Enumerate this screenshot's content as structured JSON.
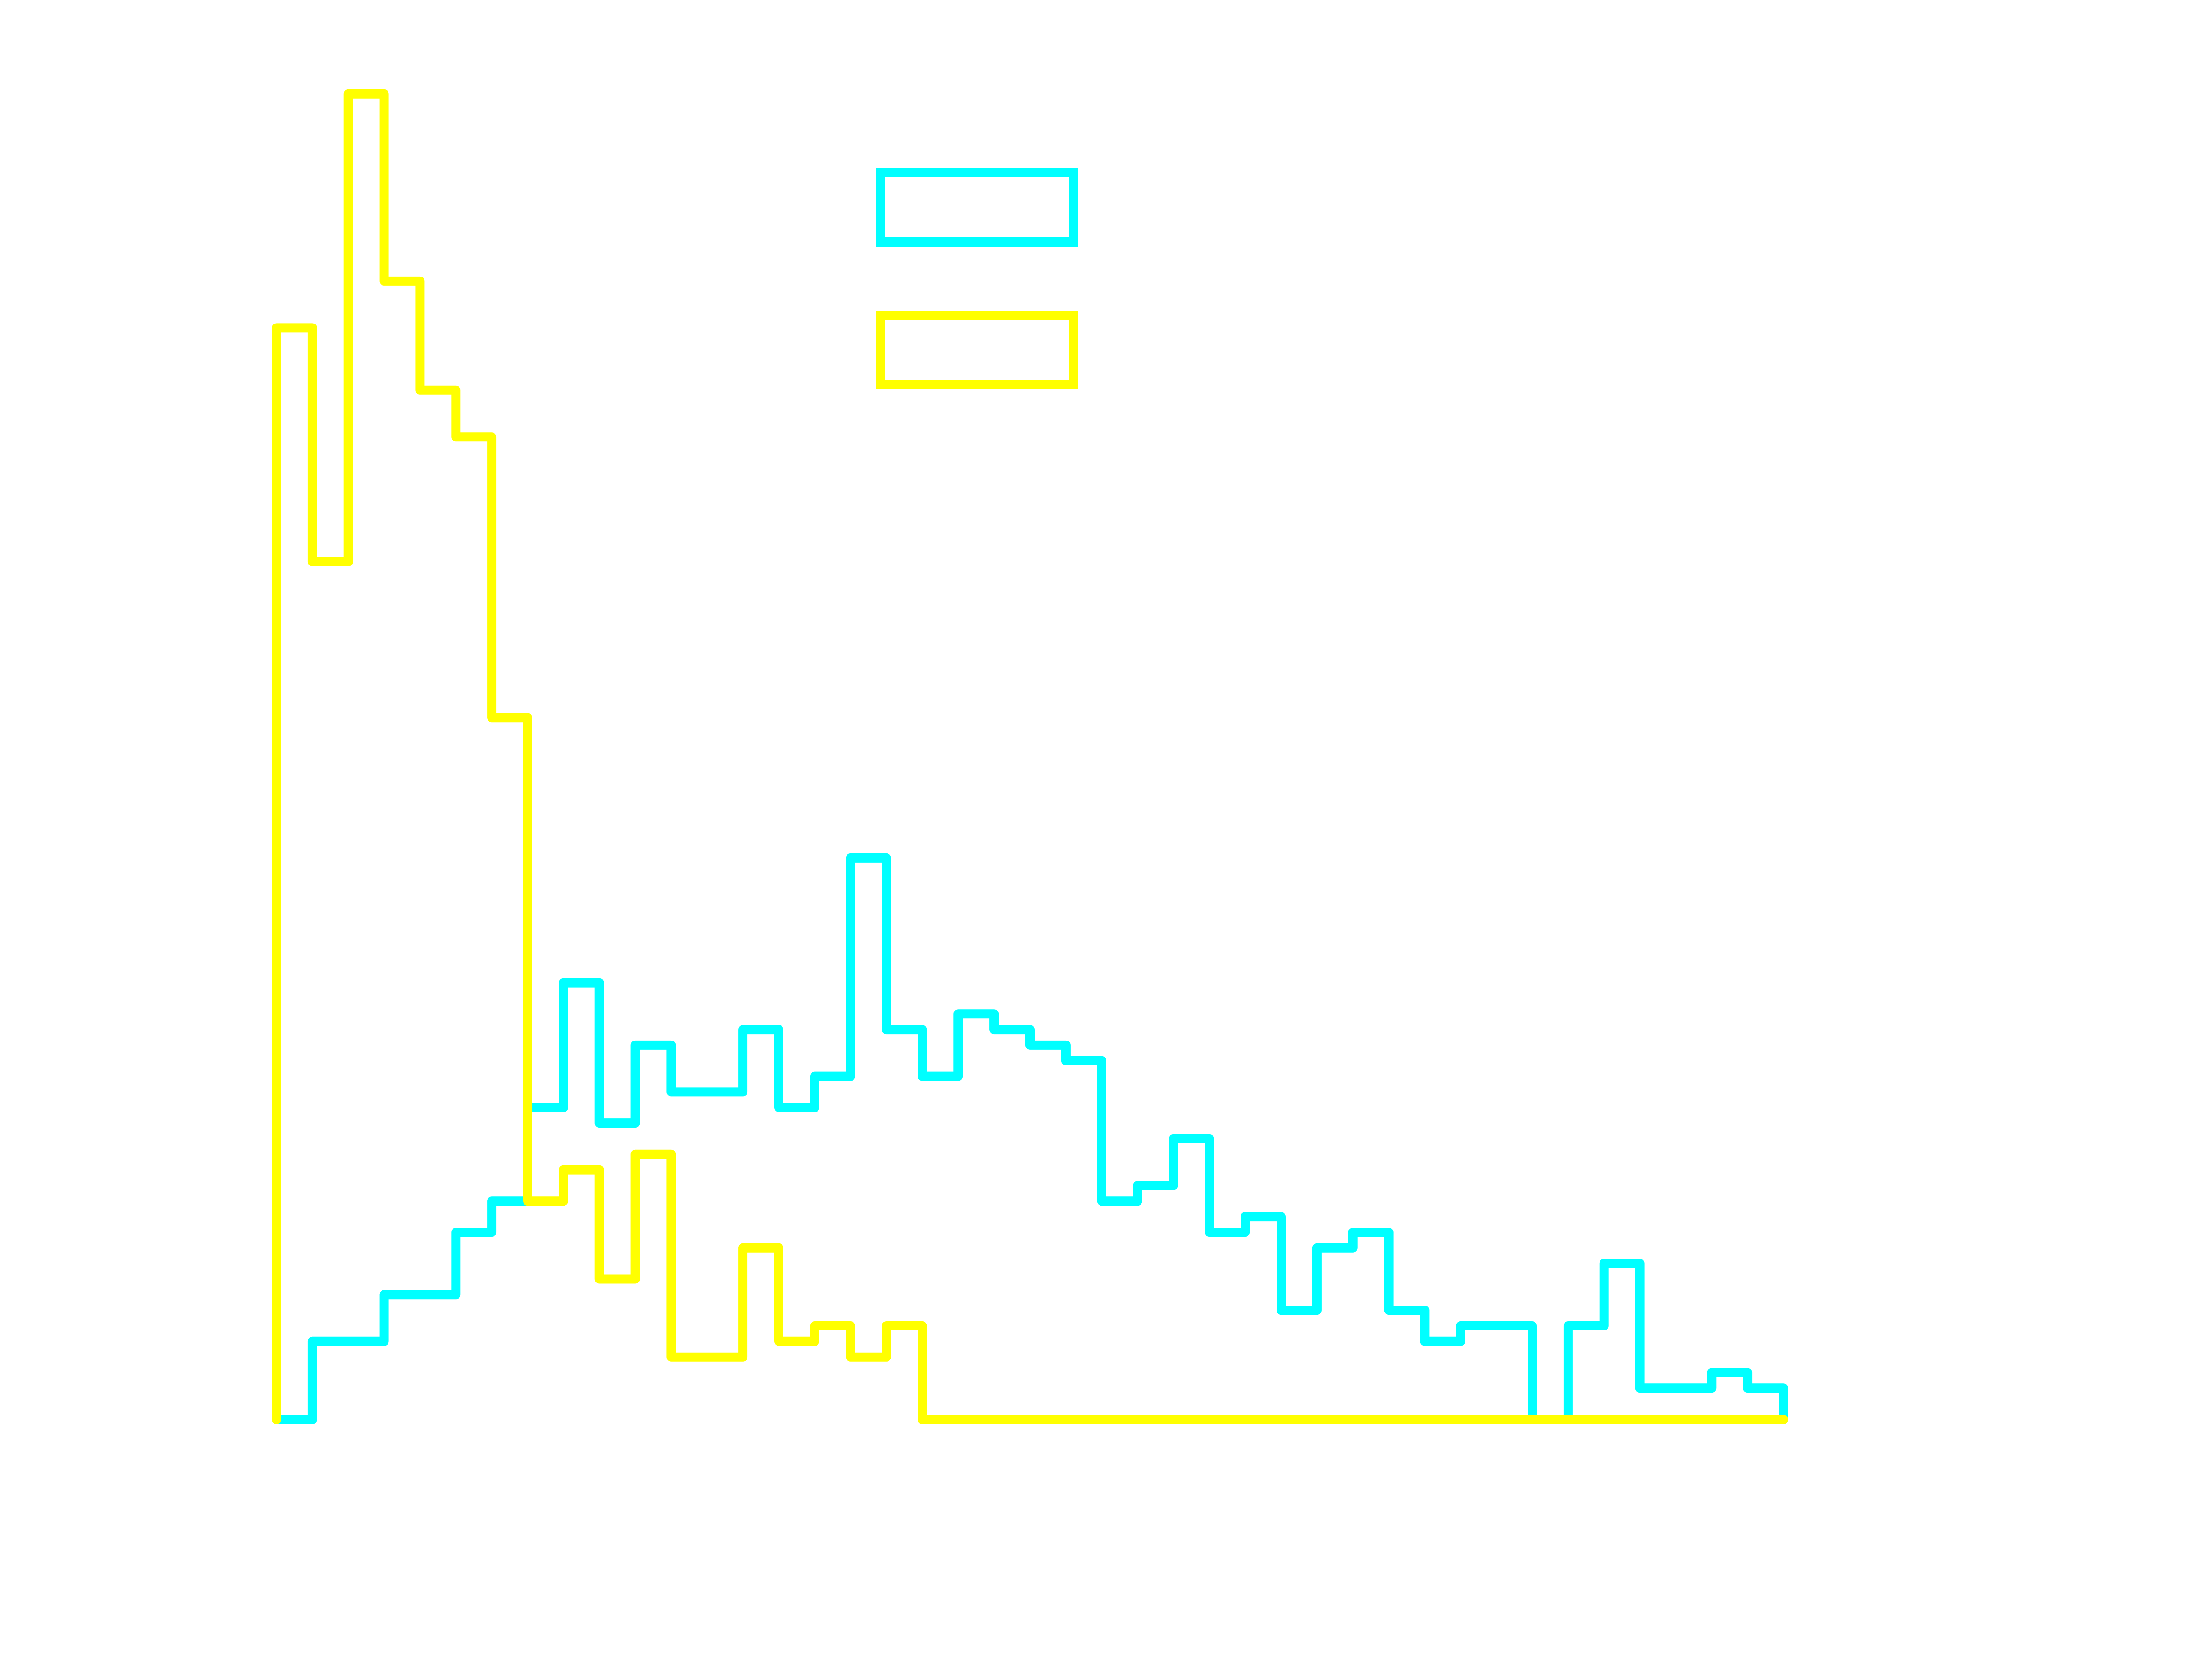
{
  "chart_data": {
    "type": "step-histogram",
    "title": "",
    "xlabel": "",
    "ylabel": "",
    "xlim": [
      0,
      42
    ],
    "ylim": [
      0,
      86
    ],
    "grid": false,
    "legend_placement": "upper-center",
    "bins": [
      0,
      1,
      2,
      3,
      4,
      5,
      6,
      7,
      8,
      9,
      10,
      11,
      12,
      13,
      14,
      15,
      16,
      17,
      18,
      19,
      20,
      21,
      22,
      23,
      24,
      25,
      26,
      27,
      28,
      29,
      30,
      31,
      32,
      33,
      34,
      35,
      36,
      37,
      38,
      39,
      40,
      41,
      42
    ],
    "series": [
      {
        "color": "#00ffff",
        "counts": [
          0,
          5,
          5,
          8,
          8,
          12,
          14,
          20,
          28,
          19,
          24,
          21,
          21,
          25,
          20,
          22,
          36,
          25,
          22,
          26,
          25,
          24,
          23,
          14,
          15,
          18,
          12,
          13,
          7,
          11,
          12,
          7,
          5,
          6,
          6,
          0,
          6,
          10,
          2,
          2,
          3,
          2
        ]
      },
      {
        "color": "#ffff00",
        "counts": [
          70,
          55,
          85,
          73,
          66,
          63,
          45,
          14,
          16,
          9,
          17,
          4,
          4,
          11,
          5,
          6,
          4,
          6,
          0,
          0,
          0,
          0,
          0,
          0,
          0,
          0,
          0,
          0,
          0,
          0,
          0,
          0,
          0,
          0,
          0,
          0,
          0,
          0,
          0,
          0,
          0,
          0
        ]
      }
    ],
    "legend": [
      {
        "color": "#00ffff"
      },
      {
        "color": "#ffff00"
      }
    ]
  }
}
